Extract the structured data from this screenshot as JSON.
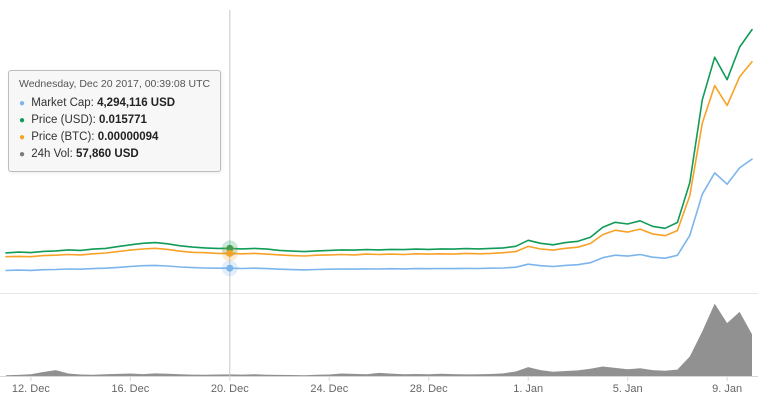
{
  "tooltip": {
    "header": "Wednesday, Dec 20 2017, 00:39:08 UTC",
    "rows": [
      {
        "label": "Market Cap:",
        "value": "4,294,116 USD",
        "color": "#7cb5ec"
      },
      {
        "label": "Price (USD):",
        "value": "0.015771",
        "color": "#119b57"
      },
      {
        "label": "Price (BTC):",
        "value": "0.00000094",
        "color": "#f7a227"
      },
      {
        "label": "24h Vol:",
        "value": "57,860 USD",
        "color": "#7a7a7a"
      }
    ]
  },
  "colors": {
    "market_cap": "#7cb5ec",
    "price_usd": "#119b57",
    "price_btc": "#f7a227",
    "volume": "#828282",
    "crosshair": "#c8c8c8",
    "grid": "#e6e6e6",
    "axis": "#d8d8d8",
    "axis_label": "#666666"
  },
  "chart_data": {
    "type": "line",
    "title": "",
    "xlabel": "",
    "ylabel": "",
    "x_start_date": "2017-12-11",
    "x_step_days": 0.5,
    "x_tick_labels": [
      "12. Dec",
      "16. Dec",
      "20. Dec",
      "24. Dec",
      "28. Dec",
      "1. Jan",
      "5. Jan",
      "9. Jan"
    ],
    "x_tick_indices": [
      2,
      10,
      18,
      26,
      34,
      42,
      50,
      58
    ],
    "crosshair_index": 18,
    "legend_position": "none",
    "grid": "pane-separator-only",
    "series": [
      {
        "name": "Market Cap",
        "unit": "USD",
        "color": "#7cb5ec",
        "axis_max": 60000000,
        "values": [
          3808000,
          3890000,
          3835000,
          3971000,
          4026000,
          4134000,
          4080000,
          4216000,
          4298000,
          4488000,
          4678000,
          4842000,
          4923000,
          4787000,
          4570000,
          4434000,
          4352000,
          4298000,
          4294116,
          4243000,
          4298000,
          4216000,
          4080000,
          3998000,
          3944000,
          4026000,
          4080000,
          4134000,
          4107000,
          4161000,
          4134000,
          4189000,
          4161000,
          4216000,
          4189000,
          4243000,
          4216000,
          4270000,
          4243000,
          4298000,
          4352000,
          4515000,
          5168000,
          4842000,
          4678000,
          4923000,
          5059000,
          5494000,
          6582000,
          7126000,
          6936000,
          7290000,
          6691000,
          6474000,
          7099000,
          11424000,
          20400000,
          25024000,
          22576000,
          26112000,
          28016000
        ]
      },
      {
        "name": "Price (USD)",
        "unit": "USD",
        "color": "#119b57",
        "axis_max": 0.11,
        "values": [
          0.014,
          0.0143,
          0.0141,
          0.0146,
          0.0148,
          0.0152,
          0.015,
          0.0155,
          0.0158,
          0.0165,
          0.0172,
          0.0178,
          0.0181,
          0.0176,
          0.0168,
          0.0163,
          0.016,
          0.0158,
          0.015771,
          0.0156,
          0.0158,
          0.0155,
          0.015,
          0.0147,
          0.0145,
          0.0148,
          0.015,
          0.0152,
          0.0151,
          0.0153,
          0.0152,
          0.0154,
          0.0153,
          0.0155,
          0.0154,
          0.0156,
          0.0155,
          0.0157,
          0.0156,
          0.0158,
          0.016,
          0.0166,
          0.019,
          0.0178,
          0.0172,
          0.0181,
          0.0186,
          0.0202,
          0.0242,
          0.0262,
          0.0255,
          0.0268,
          0.0246,
          0.0238,
          0.0261,
          0.042,
          0.075,
          0.092,
          0.083,
          0.096,
          0.103
        ]
      },
      {
        "name": "Price (BTC)",
        "unit": "BTC",
        "color": "#f7a227",
        "axis_max": 7.5e-06,
        "values": [
          8.5e-07,
          8.6e-07,
          8.5e-07,
          8.8e-07,
          8.9e-07,
          9.1e-07,
          9e-07,
          9.3e-07,
          9.5e-07,
          9.9e-07,
          1.03e-06,
          1.06e-06,
          1.08e-06,
          1.05e-06,
          1e-06,
          9.7e-07,
          9.6e-07,
          9.4e-07,
          9.4e-07,
          9.3e-07,
          9.4e-07,
          9.2e-07,
          9e-07,
          8.8e-07,
          8.7e-07,
          8.9e-07,
          9e-07,
          9.1e-07,
          9e-07,
          9.2e-07,
          9.1e-07,
          9.2e-07,
          9.1e-07,
          9.3e-07,
          9.2e-07,
          9.3e-07,
          9.2e-07,
          9.4e-07,
          9.3e-07,
          9.4e-07,
          9.6e-07,
          9.9e-07,
          1.13e-06,
          1.06e-06,
          1.03e-06,
          1.08e-06,
          1.11e-06,
          1.21e-06,
          1.45e-06,
          1.57e-06,
          1.52e-06,
          1.6e-06,
          1.47e-06,
          1.42e-06,
          1.56e-06,
          2.51e-06,
          4.48e-06,
          5.5e-06,
          4.96e-06,
          5.74e-06,
          6.15e-06
        ]
      },
      {
        "name": "24h Vol",
        "unit": "USD",
        "type": "area",
        "color": "#828282",
        "axis_max": 2800000,
        "values": [
          25000,
          38000,
          60000,
          145000,
          210000,
          90000,
          55000,
          48000,
          62000,
          75000,
          88000,
          70000,
          95000,
          82000,
          60000,
          52000,
          48000,
          55000,
          57860,
          50000,
          62000,
          48000,
          40000,
          35000,
          30000,
          42000,
          55000,
          90000,
          75000,
          60000,
          110000,
          85000,
          65000,
          72000,
          60000,
          80000,
          70000,
          58000,
          65000,
          72000,
          95000,
          160000,
          320000,
          210000,
          150000,
          180000,
          200000,
          260000,
          340000,
          290000,
          240000,
          280000,
          210000,
          185000,
          230000,
          700000,
          1600000,
          2600000,
          1900000,
          2300000,
          1500000
        ]
      }
    ]
  }
}
